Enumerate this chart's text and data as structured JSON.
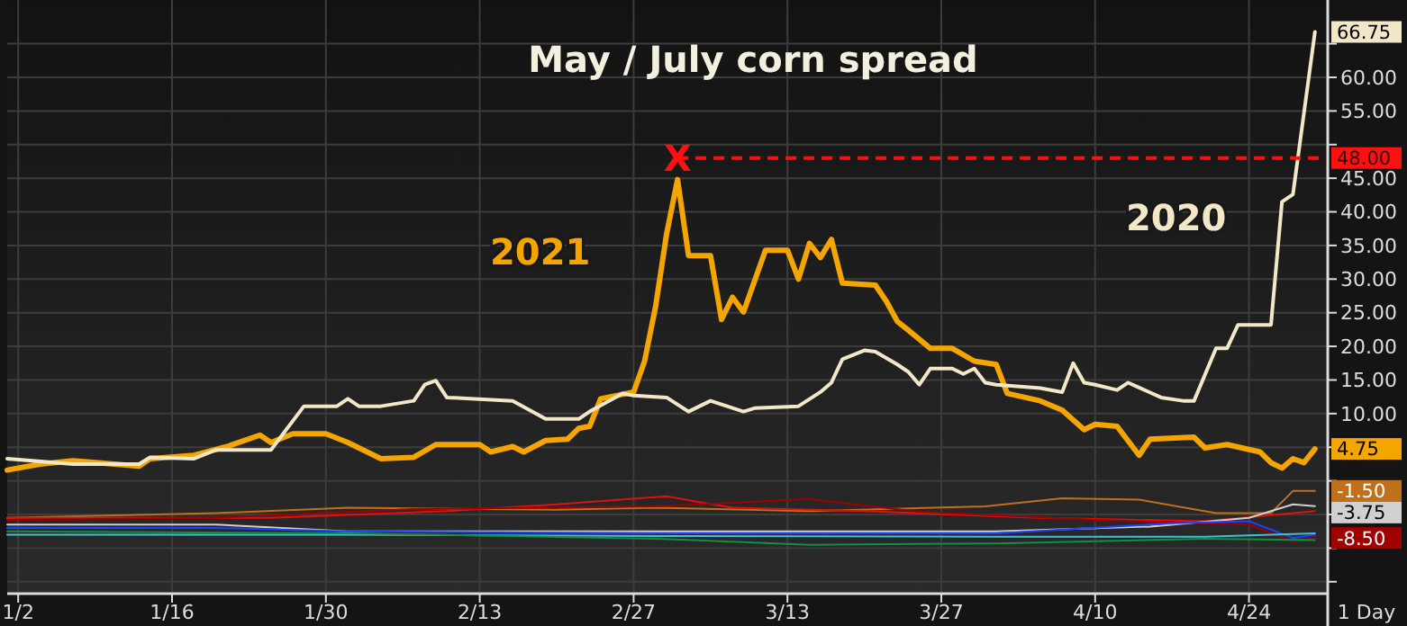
{
  "chart_data": {
    "type": "line",
    "title": "May / July corn spread",
    "xlim": [
      "--01-01",
      "--05-01"
    ],
    "xticks": [
      {
        "value": "--01-02",
        "label": "1/2"
      },
      {
        "value": "--01-16",
        "label": "1/16"
      },
      {
        "value": "--01-30",
        "label": "1/30"
      },
      {
        "value": "--02-13",
        "label": "2/13"
      },
      {
        "value": "--02-27",
        "label": "2/27"
      },
      {
        "value": "--03-13",
        "label": "3/13"
      },
      {
        "value": "--03-27",
        "label": "3/27"
      },
      {
        "value": "--04-10",
        "label": "4/10"
      },
      {
        "value": "--04-24",
        "label": "4/24"
      }
    ],
    "ylim": [
      -16.5,
      71.5
    ],
    "yticks": [
      {
        "value": -15,
        "label": null
      },
      {
        "value": -10,
        "label": null
      },
      {
        "value": -5,
        "label": null
      },
      {
        "value": 0,
        "label": null
      },
      {
        "value": 5,
        "label": null
      },
      {
        "value": 10,
        "label": "10.00"
      },
      {
        "value": 15,
        "label": "15.00"
      },
      {
        "value": 20,
        "label": "20.00"
      },
      {
        "value": 25,
        "label": "25.00"
      },
      {
        "value": 30,
        "label": "30.00"
      },
      {
        "value": 35,
        "label": "35.00"
      },
      {
        "value": 40,
        "label": "40.00"
      },
      {
        "value": 45,
        "label": "45.00"
      },
      {
        "value": 50,
        "label": null
      },
      {
        "value": 55,
        "label": "55.00"
      },
      {
        "value": 60,
        "label": "60.00"
      },
      {
        "value": 65,
        "label": null
      }
    ],
    "grid": true,
    "marker": "none",
    "line_style": "solid",
    "ref_lines": [
      {
        "axis": "y",
        "value": 48,
        "label": "48.00",
        "color": "#ff1010",
        "line_style": "dashed"
      }
    ],
    "annotations": [
      {
        "text": "X",
        "x": "--03-03",
        "y": 48
      },
      "1 Day"
    ],
    "series": [
      {
        "name": "2021",
        "color": "#f5a500",
        "x": [
          "--01-01",
          "--01-04",
          "--01-07",
          "--01-13",
          "--01-14",
          "--01-18",
          "--01-21",
          "--01-24",
          "--01-25",
          "--01-27",
          "--01-30",
          "--02-01",
          "--02-04",
          "--02-07",
          "--02-09",
          "--02-13",
          "--02-14",
          "--02-16",
          "--02-17",
          "--02-19",
          "--02-21",
          "--02-22",
          "--02-23",
          "--02-24",
          "--02-27",
          "--02-28",
          "--03-01",
          "--03-02",
          "--03-03",
          "--03-04",
          "--03-06",
          "--03-07",
          "--03-08",
          "--03-09",
          "--03-11",
          "--03-13",
          "--03-14",
          "--03-15",
          "--03-16",
          "--03-17",
          "--03-18",
          "--03-21",
          "--03-22",
          "--03-23",
          "--03-24",
          "--03-26",
          "--03-28",
          "--03-30",
          "--04-01",
          "--04-02",
          "--04-05",
          "--04-07",
          "--04-09",
          "--04-10",
          "--04-12",
          "--04-14",
          "--04-15",
          "--04-19",
          "--04-20",
          "--04-22",
          "--04-25",
          "--04-26",
          "--04-27",
          "--04-28",
          "--04-29",
          "--04-30"
        ],
        "values": [
          1.6,
          2.5,
          3.0,
          2.2,
          3.3,
          3.8,
          5.1,
          6.8,
          5.7,
          7.0,
          7.0,
          5.7,
          3.3,
          3.5,
          5.4,
          5.4,
          4.3,
          5.1,
          4.3,
          6.0,
          6.2,
          7.8,
          8.1,
          12.2,
          13.2,
          17.8,
          25.9,
          36.7,
          44.8,
          33.5,
          33.5,
          24.0,
          27.3,
          25.1,
          34.3,
          34.3,
          30.0,
          35.3,
          33.2,
          35.9,
          29.4,
          29.1,
          26.7,
          23.7,
          22.4,
          19.7,
          19.7,
          17.8,
          17.3,
          13.0,
          11.9,
          10.5,
          7.6,
          8.4,
          8.1,
          3.8,
          6.2,
          6.5,
          4.9,
          5.4,
          4.3,
          2.7,
          1.9,
          3.3,
          2.7,
          4.75
        ],
        "value_labels": [
          null,
          null,
          null,
          null,
          null,
          null,
          null,
          null,
          null,
          null,
          null,
          null,
          null,
          null,
          null,
          null,
          null,
          null,
          null,
          null,
          null,
          null,
          null,
          null,
          null,
          null,
          null,
          null,
          null,
          null,
          null,
          null,
          null,
          null,
          null,
          null,
          null,
          null,
          null,
          null,
          null,
          null,
          null,
          null,
          null,
          null,
          null,
          null,
          null,
          null,
          null,
          null,
          null,
          null,
          null,
          null,
          null,
          null,
          null,
          null,
          null,
          null,
          null,
          null,
          null,
          "4.75"
        ]
      },
      {
        "name": "2020",
        "color": "#f2e8c8",
        "x": [
          "--01-01",
          "--01-07",
          "--01-13",
          "--01-14",
          "--01-18",
          "--01-20",
          "--01-25",
          "--01-28",
          "--01-31",
          "--02-01",
          "--02-02",
          "--02-04",
          "--02-07",
          "--02-08",
          "--02-09",
          "--02-10",
          "--02-16",
          "--02-19",
          "--02-22",
          "--02-23",
          "--02-26",
          "--02-27",
          "--03-02",
          "--03-04",
          "--03-06",
          "--03-09",
          "--03-10",
          "--03-14",
          "--03-16",
          "--03-17",
          "--03-18",
          "--03-20",
          "--03-21",
          "--03-23",
          "--03-24",
          "--03-25",
          "--03-26",
          "--03-28",
          "--03-29",
          "--03-30",
          "--03-31",
          "--04-01",
          "--04-05",
          "--04-07",
          "--04-08",
          "--04-09",
          "--04-10",
          "--04-12",
          "--04-13",
          "--04-16",
          "--04-18",
          "--04-19",
          "--04-21",
          "--04-22",
          "--04-23",
          "--04-26",
          "--04-27",
          "--04-28",
          "--04-30"
        ],
        "values": [
          3.3,
          2.5,
          2.5,
          3.5,
          3.3,
          4.6,
          4.6,
          11.1,
          11.1,
          12.2,
          11.1,
          11.1,
          11.9,
          14.3,
          14.9,
          12.4,
          11.9,
          9.2,
          9.2,
          10.3,
          13.0,
          12.7,
          12.4,
          10.3,
          11.9,
          10.3,
          10.8,
          11.1,
          13.2,
          14.6,
          18.1,
          19.4,
          19.2,
          17.3,
          16.2,
          14.3,
          16.7,
          16.7,
          15.9,
          16.7,
          14.6,
          14.3,
          13.8,
          13.2,
          17.5,
          14.6,
          14.3,
          13.5,
          14.6,
          12.4,
          11.9,
          11.9,
          19.7,
          19.7,
          23.2,
          23.2,
          41.5,
          42.6,
          66.75
        ],
        "value_labels": [
          null,
          null,
          null,
          null,
          null,
          null,
          null,
          null,
          null,
          null,
          null,
          null,
          null,
          null,
          null,
          null,
          null,
          null,
          null,
          null,
          null,
          null,
          null,
          null,
          null,
          null,
          null,
          null,
          null,
          null,
          null,
          null,
          null,
          null,
          null,
          null,
          null,
          null,
          null,
          null,
          null,
          null,
          null,
          null,
          null,
          null,
          null,
          null,
          null,
          null,
          null,
          null,
          null,
          null,
          null,
          null,
          null,
          null,
          "66.75"
        ]
      },
      {
        "color": "#c0701a",
        "x": [
          "--01-01",
          "--01-20",
          "--02-01",
          "--02-20",
          "--03-01",
          "--03-15",
          "--03-31",
          "--04-07",
          "--04-14",
          "--04-21",
          "--04-26",
          "--04-28",
          "--04-30"
        ],
        "values": [
          -5.5,
          -4.8,
          -4.0,
          -4.3,
          -4.0,
          -4.5,
          -3.8,
          -2.6,
          -2.8,
          -4.8,
          -4.8,
          -1.5,
          -1.5
        ],
        "value_labels": [
          null,
          null,
          null,
          null,
          null,
          null,
          null,
          null,
          null,
          null,
          null,
          null,
          "-1.50"
        ]
      },
      {
        "color": "#e01010",
        "x": [
          "--01-01",
          "--01-25",
          "--02-10",
          "--02-20",
          "--03-02",
          "--03-08",
          "--03-20",
          "--04-05",
          "--04-20",
          "--04-30"
        ],
        "values": [
          -5.5,
          -5.5,
          -4.5,
          -3.5,
          -2.3,
          -4.0,
          -4.5,
          -5.5,
          -6.0,
          -4.5
        ]
      },
      {
        "color": "#a00000",
        "x": [
          "--01-01",
          "--01-20",
          "--02-07",
          "--03-01",
          "--03-15",
          "--03-25",
          "--04-10",
          "--04-24",
          "--04-28",
          "--04-30"
        ],
        "values": [
          -5.8,
          -5.5,
          -4.2,
          -3.8,
          -2.7,
          -4.6,
          -5.8,
          -6.5,
          -9.0,
          -8.5
        ],
        "value_labels": [
          null,
          null,
          null,
          null,
          null,
          null,
          null,
          null,
          null,
          "-8.50"
        ]
      },
      {
        "color": "#d0d0d0",
        "x": [
          "--01-01",
          "--01-20",
          "--02-01",
          "--03-01",
          "--04-01",
          "--04-15",
          "--04-24",
          "--04-28",
          "--04-30"
        ],
        "values": [
          -6.5,
          -6.5,
          -7.5,
          -7.5,
          -7.5,
          -6.8,
          -5.5,
          -3.5,
          -3.75
        ],
        "value_labels": [
          null,
          null,
          null,
          null,
          null,
          null,
          null,
          null,
          "-3.75"
        ]
      },
      {
        "color": "#2040ff",
        "x": [
          "--01-01",
          "--01-20",
          "--02-01",
          "--03-01",
          "--04-01",
          "--04-17",
          "--04-24",
          "--04-28",
          "--04-30"
        ],
        "values": [
          -7.0,
          -7.0,
          -7.5,
          -7.8,
          -7.8,
          -6.3,
          -6.0,
          -8.5,
          -8.0
        ]
      },
      {
        "color": "#40c0d0",
        "x": [
          "--01-01",
          "--02-01",
          "--03-01",
          "--04-01",
          "--04-20",
          "--04-30"
        ],
        "values": [
          -8.0,
          -8.0,
          -8.2,
          -8.3,
          -8.3,
          -7.8
        ]
      },
      {
        "color": "#109040",
        "x": [
          "--01-01",
          "--02-01",
          "--03-01",
          "--03-15",
          "--04-01",
          "--04-20",
          "--04-30"
        ],
        "values": [
          -7.5,
          -7.8,
          -8.6,
          -9.5,
          -9.3,
          -8.6,
          -8.8
        ]
      }
    ]
  }
}
